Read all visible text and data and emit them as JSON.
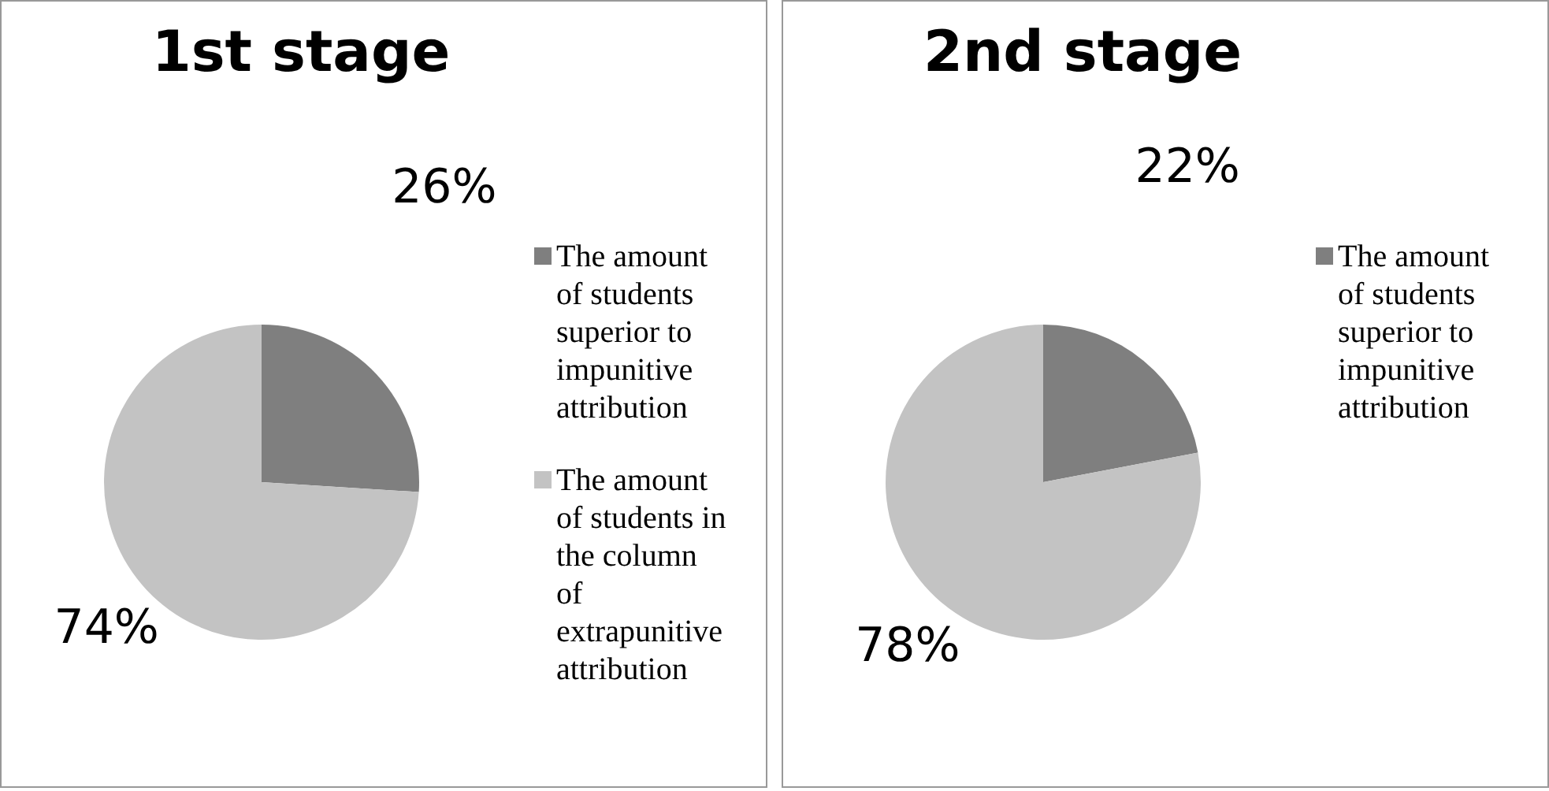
{
  "chart_data": [
    {
      "type": "pie",
      "title": "1st stage",
      "categories": [
        "The amount of students superior to impunitive attribution",
        "The amount of students in the column of extrapunitive attribution"
      ],
      "values": [
        26,
        74
      ],
      "colors": [
        "#7f7f7f",
        "#c3c3c3"
      ],
      "value_labels": [
        "26%",
        "74%"
      ],
      "legend": "right"
    },
    {
      "type": "pie",
      "title": "2nd stage",
      "categories": [
        "The amount of students superior to impunitive attribution",
        null
      ],
      "values": [
        22,
        78
      ],
      "colors": [
        "#7f7f7f",
        "#c3c3c3"
      ],
      "value_labels": [
        "22%",
        "78%"
      ],
      "legend": "right"
    }
  ]
}
